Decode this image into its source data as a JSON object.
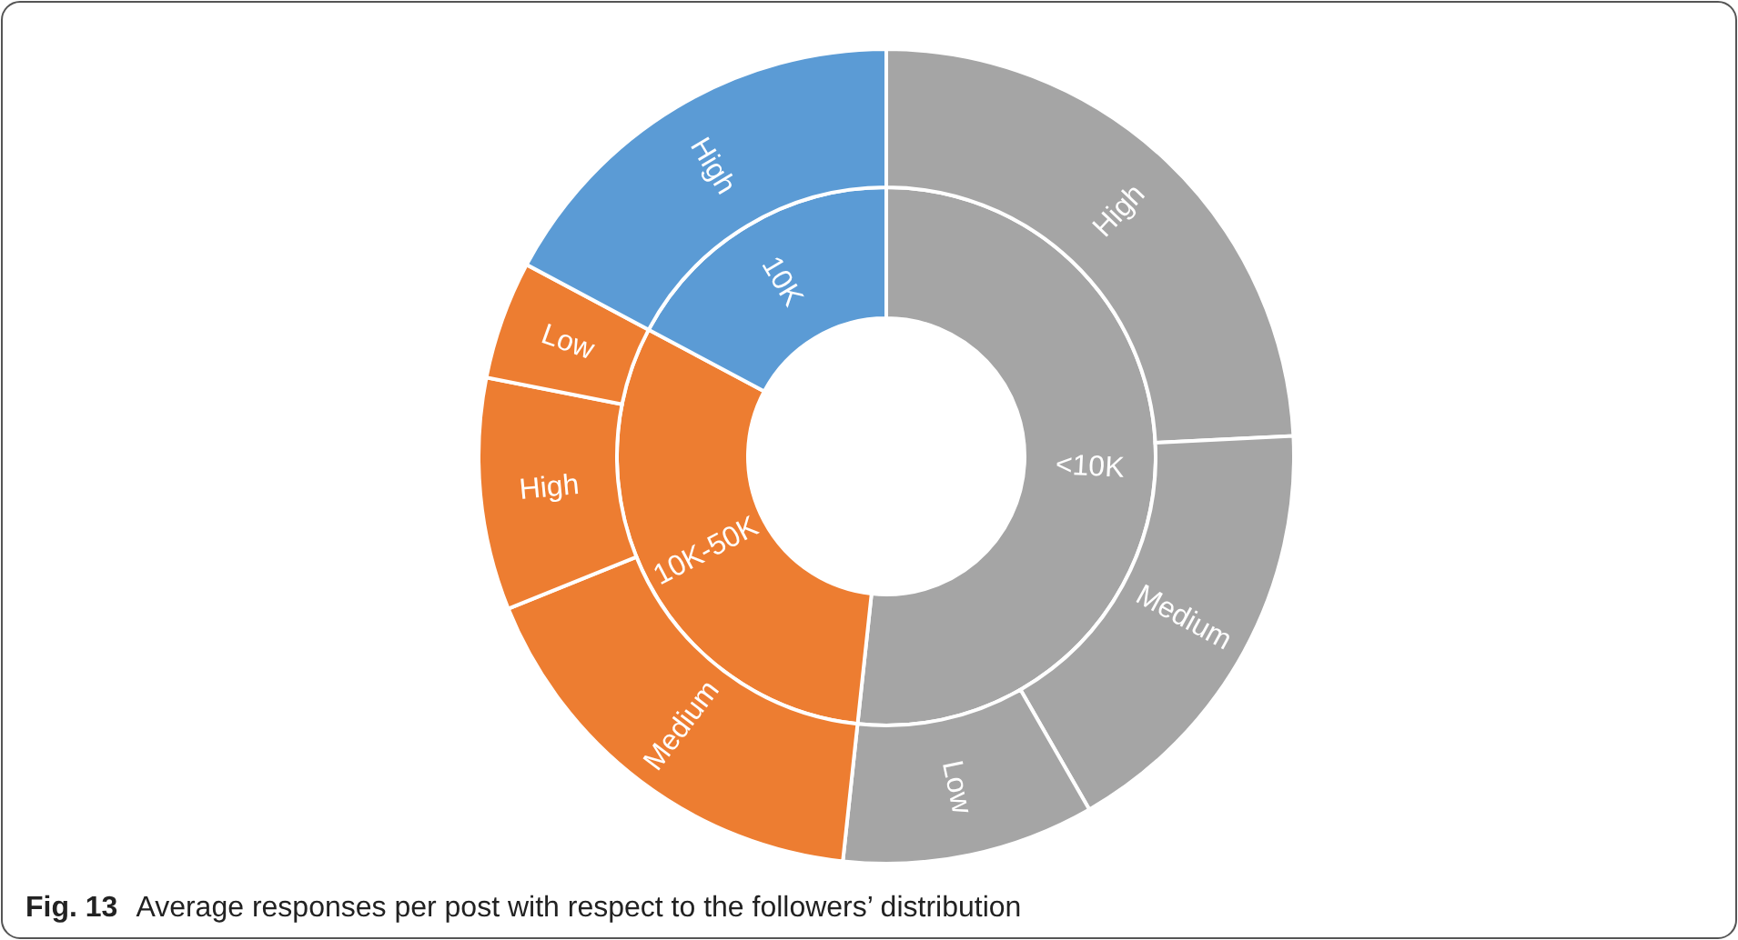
{
  "chart_data": [
    {
      "type": "donut",
      "categories": [
        "<10K",
        "10K-50K",
        "10K"
      ],
      "values": [
        51.7,
        31.1,
        17.2
      ],
      "colors": [
        "#a5a5a5",
        "#ed7d31",
        "#5b9bd5"
      ]
    },
    {
      "type": "donut",
      "title": "Fig. 13",
      "subtitle": "Average responses per post with respect to the followers’ distribution",
      "categories": [
        "High",
        "Medium",
        "Low",
        "Medium",
        "High",
        "Low",
        "High"
      ],
      "values": [
        24.2,
        17.5,
        10.0,
        17.2,
        9.2,
        4.7,
        17.2
      ],
      "colors": [
        "#a5a5a5",
        "#a5a5a5",
        "#a5a5a5",
        "#ed7d31",
        "#ed7d31",
        "#ed7d31",
        "#5b9bd5"
      ]
    }
  ]
}
